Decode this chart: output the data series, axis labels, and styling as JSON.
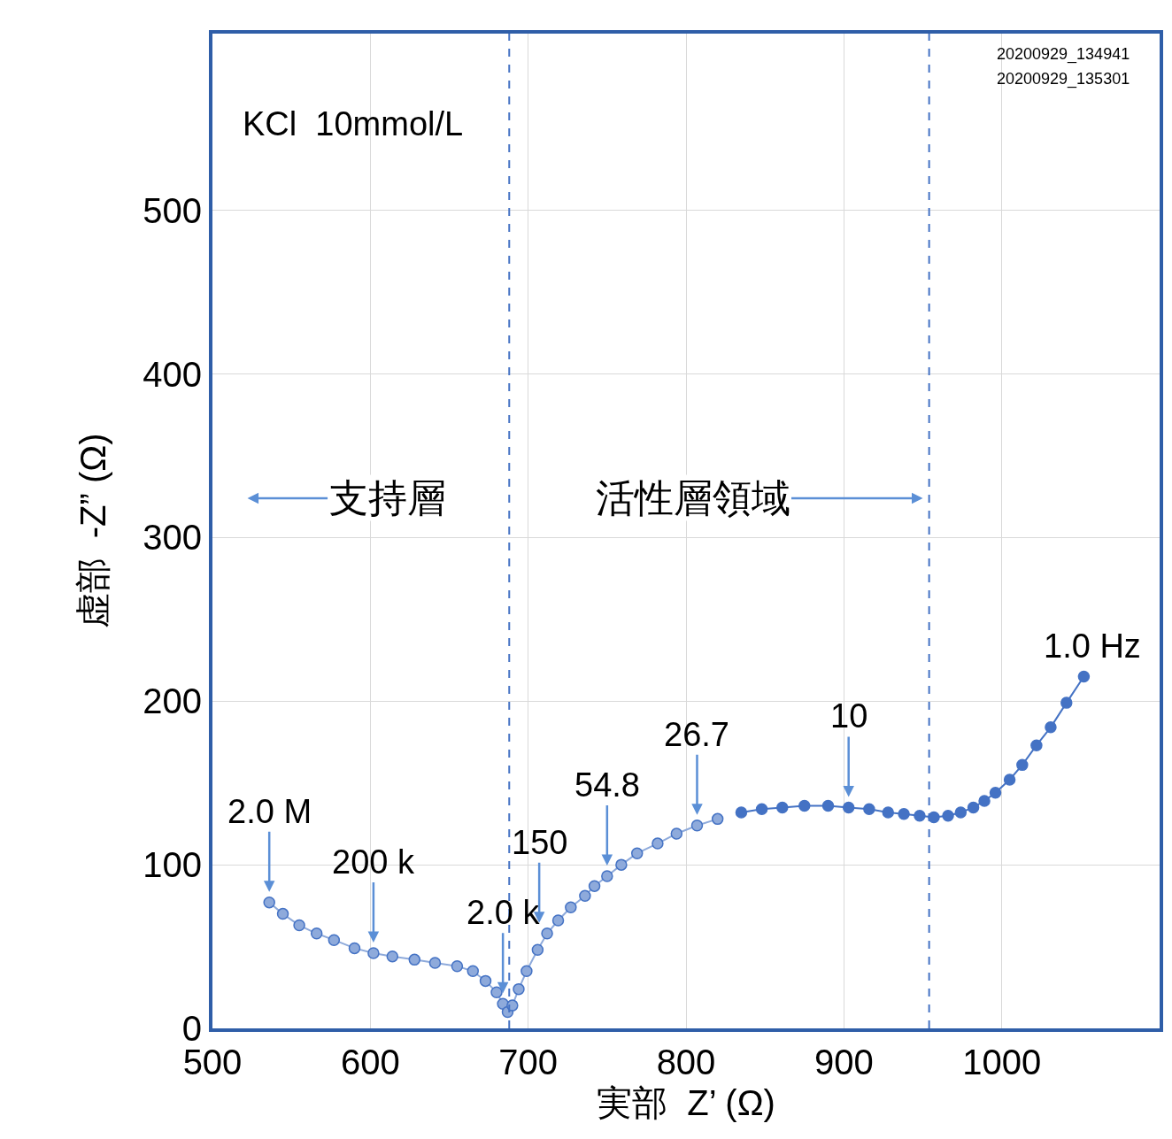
{
  "chart_data": {
    "type": "line",
    "xlabel": "実部  Z’ (Ω)",
    "ylabel": "虚部  -Z” (Ω)",
    "series": [
      {
        "color": "#8eaadb",
        "x": [
          536,
          544.6,
          555,
          566,
          577,
          590,
          602,
          614,
          628,
          641,
          655,
          665,
          673,
          680,
          684,
          687,
          690,
          694,
          699,
          706,
          712,
          719,
          727,
          736,
          742,
          750,
          759,
          769,
          782,
          794,
          807,
          820
        ],
        "values": [
          77,
          70,
          63,
          58,
          54,
          49,
          46,
          44,
          42,
          40,
          38,
          35,
          29,
          22,
          15,
          10,
          14,
          24,
          35,
          48,
          58,
          66,
          74,
          81,
          87,
          93,
          100,
          107,
          113,
          119,
          124,
          128
        ]
      },
      {
        "color": "#4472c4",
        "x": [
          835,
          848,
          861,
          875,
          890,
          903,
          916,
          928,
          938,
          948,
          957,
          966,
          974,
          982,
          989,
          996,
          1005,
          1013,
          1022,
          1031,
          1041,
          1052
        ],
        "values": [
          132,
          134,
          135,
          136,
          136,
          135,
          134,
          132,
          131,
          130,
          129,
          130,
          132,
          135,
          139,
          144,
          152,
          161,
          173,
          184,
          199,
          215
        ]
      }
    ],
    "xlim": [
      500,
      1100
    ],
    "xticks": [
      500,
      600,
      700,
      800,
      900,
      1000
    ],
    "ylim": [
      0,
      608
    ],
    "yticks": [
      0,
      100,
      200,
      300,
      400,
      500
    ],
    "grid": true,
    "marker": "circle",
    "line_style": "solid",
    "ref_lines": [
      {
        "axis": "x",
        "value": 688,
        "color": "#4472c4",
        "line_style": "dashed"
      },
      {
        "axis": "x",
        "value": 954,
        "color": "#4472c4",
        "line_style": "dashed"
      }
    ],
    "annotations": [
      "KCl  10mmol/L",
      "20200929_134941",
      "20200929_135301",
      {
        "text": "2.0 M",
        "x": 536,
        "y": 77
      },
      {
        "text": "200 k",
        "x": 602,
        "y": 46
      },
      {
        "text": "2.0 k",
        "x": 684,
        "y": 15
      },
      {
        "text": "150",
        "x": 707,
        "y": 58
      },
      {
        "text": "54.8",
        "x": 750,
        "y": 93
      },
      {
        "text": "26.7",
        "x": 807,
        "y": 124
      },
      {
        "text": "10",
        "x": 903,
        "y": 135
      },
      {
        "text": "1.0 Hz",
        "x": 1052,
        "y": 215
      },
      "支持層",
      "活性層領域"
    ]
  }
}
